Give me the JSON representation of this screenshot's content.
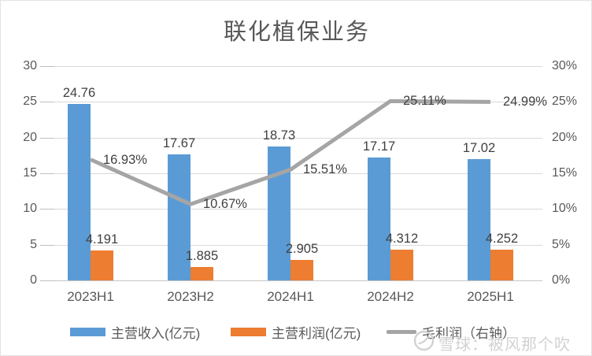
{
  "title": "联化植保业务",
  "watermark": {
    "text": "雪球：被风那个吹",
    "icon": "xueqiu-snowball-logo"
  },
  "colors": {
    "revenue_bar": "#5b9bd5",
    "profit_bar": "#ed7d31",
    "margin_line": "#a5a5a5",
    "gridline": "#d9d9d9",
    "axis_text": "#595959",
    "data_label": "#404040"
  },
  "chart_data": {
    "type": "bar",
    "title": "联化植保业务",
    "categories": [
      "2023H1",
      "2023H2",
      "2024H1",
      "2024H2",
      "2025H1"
    ],
    "series": [
      {
        "name": "主营收入(亿元)",
        "type": "bar",
        "axis": "left",
        "color": "#5b9bd5",
        "values": [
          24.76,
          17.67,
          18.73,
          17.17,
          17.02
        ],
        "labels": [
          "24.76",
          "17.67",
          "18.73",
          "17.17",
          "17.02"
        ]
      },
      {
        "name": "主营利润(亿元)",
        "type": "bar",
        "axis": "left",
        "color": "#ed7d31",
        "values": [
          4.191,
          1.885,
          2.905,
          4.312,
          4.252
        ],
        "labels": [
          "4.191",
          "1.885",
          "2.905",
          "4.312",
          "4.252"
        ]
      },
      {
        "name": "毛利润（右轴）",
        "type": "line",
        "axis": "right",
        "color": "#a5a5a5",
        "values": [
          16.93,
          10.67,
          15.51,
          25.11,
          24.99
        ],
        "labels": [
          "16.93%",
          "10.67%",
          "15.51%",
          "25.11%",
          "24.99%"
        ]
      }
    ],
    "left_axis": {
      "min": 0,
      "max": 30,
      "step": 5,
      "ticks": [
        "0",
        "5",
        "10",
        "15",
        "20",
        "25",
        "30"
      ]
    },
    "right_axis": {
      "min": 0,
      "max": 30,
      "step": 5,
      "ticks": [
        "0%",
        "5%",
        "10%",
        "15%",
        "20%",
        "25%",
        "30%"
      ]
    },
    "grid": true,
    "legend_position": "bottom"
  }
}
